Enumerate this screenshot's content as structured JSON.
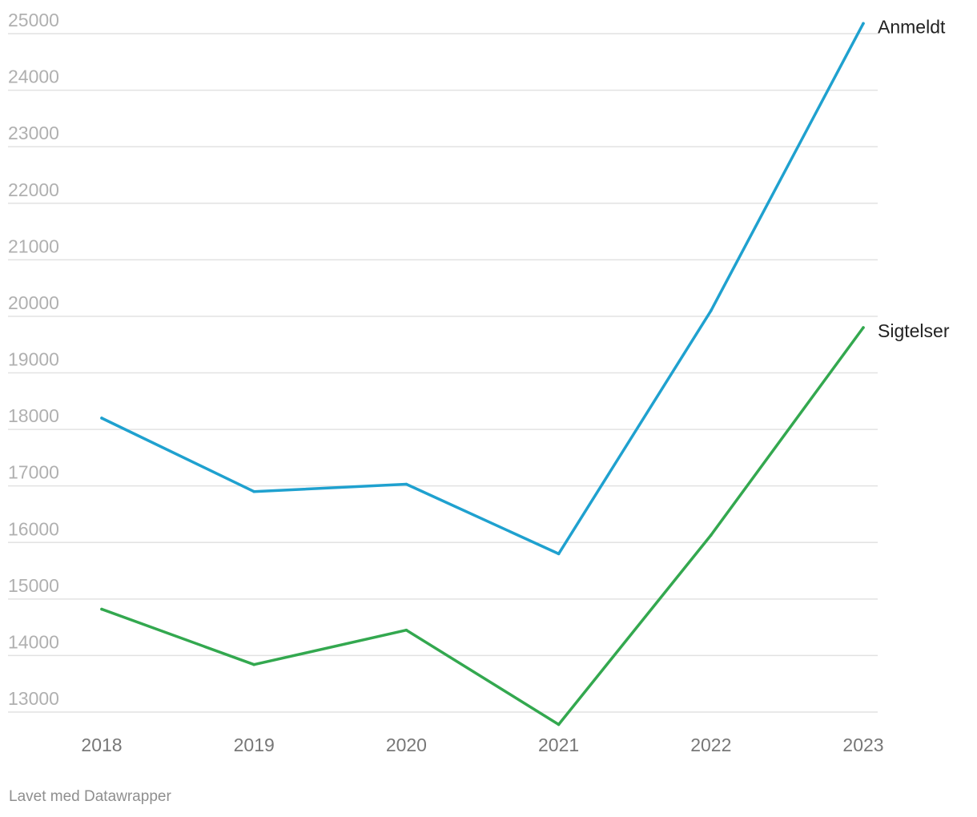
{
  "chart_data": {
    "type": "line",
    "x": [
      "2018",
      "2019",
      "2020",
      "2021",
      "2022",
      "2023"
    ],
    "series": [
      {
        "name": "Anmeldt",
        "color": "#1fa1cf",
        "values": [
          18200,
          16900,
          17030,
          15800,
          20100,
          25180
        ]
      },
      {
        "name": "Sigtelser",
        "color": "#33a84f",
        "values": [
          14820,
          13840,
          14450,
          12780,
          16130,
          19800
        ]
      }
    ],
    "yticks": [
      13000,
      14000,
      15000,
      16000,
      17000,
      18000,
      19000,
      20000,
      21000,
      22000,
      23000,
      24000,
      25000
    ],
    "ylim": [
      12750,
      25250
    ],
    "grid": true,
    "legend": "inline labels at line ends"
  },
  "footer": {
    "credit": "Lavet med Datawrapper"
  }
}
